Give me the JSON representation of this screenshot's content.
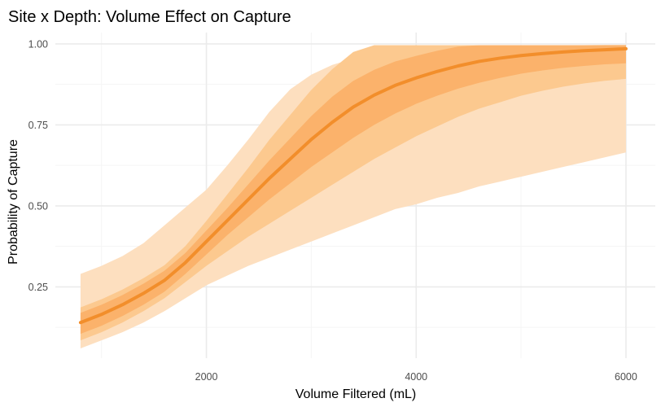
{
  "chart_data": {
    "type": "line",
    "title": "Site x Depth: Volume Effect on Capture",
    "xlabel": "Volume Filtered (mL)",
    "ylabel": "Probability of Capture",
    "xlim": [
      560,
      6280
    ],
    "ylim": [
      0.03,
      1.035
    ],
    "x_ticks": [
      2000,
      4000,
      6000
    ],
    "x_tick_labels": [
      "2000",
      "4000",
      "6000"
    ],
    "x_minor_ticks": [
      1000,
      3000,
      5000
    ],
    "y_ticks": [
      0.25,
      0.5,
      0.75,
      1.0
    ],
    "y_tick_labels": [
      "0.25",
      "0.50",
      "0.75",
      "1.00"
    ],
    "y_minor_ticks": [
      0.125,
      0.375,
      0.625,
      0.875
    ],
    "grid": true,
    "legend": "none",
    "colors": {
      "line": "#f28e2b",
      "ribbon_outer": "#fddfbf",
      "ribbon_middle": "#fcc98f",
      "ribbon_inner": "#fbb26b",
      "grid_major": "#ebebeb",
      "grid_minor": "#f5f5f5"
    },
    "x": [
      800,
      1000,
      1200,
      1400,
      1600,
      1800,
      2000,
      2200,
      2400,
      2600,
      2800,
      3000,
      3200,
      3400,
      3600,
      3800,
      4000,
      4200,
      4400,
      4600,
      4800,
      5000,
      5200,
      5400,
      5600,
      5800,
      6000
    ],
    "series": [
      {
        "values": [
          0.14,
          0.165,
          0.195,
          0.23,
          0.27,
          0.325,
          0.39,
          0.455,
          0.52,
          0.585,
          0.645,
          0.705,
          0.758,
          0.805,
          0.842,
          0.872,
          0.895,
          0.915,
          0.932,
          0.946,
          0.956,
          0.964,
          0.97,
          0.975,
          0.979,
          0.982,
          0.985
        ]
      }
    ],
    "ribbons": [
      {
        "level": "outer",
        "lower": [
          0.06,
          0.085,
          0.11,
          0.14,
          0.175,
          0.215,
          0.255,
          0.285,
          0.315,
          0.34,
          0.365,
          0.39,
          0.415,
          0.44,
          0.465,
          0.49,
          0.505,
          0.525,
          0.54,
          0.56,
          0.575,
          0.59,
          0.605,
          0.62,
          0.635,
          0.65,
          0.665
        ],
        "upper": [
          0.29,
          0.315,
          0.345,
          0.385,
          0.44,
          0.495,
          0.55,
          0.625,
          0.705,
          0.79,
          0.86,
          0.905,
          0.935,
          0.955,
          0.968,
          0.977,
          0.983,
          0.987,
          0.99,
          0.992,
          0.993,
          0.994,
          0.995,
          0.996,
          0.996,
          0.997,
          0.997
        ]
      },
      {
        "level": "middle",
        "lower": [
          0.085,
          0.11,
          0.14,
          0.175,
          0.215,
          0.265,
          0.315,
          0.36,
          0.405,
          0.445,
          0.485,
          0.525,
          0.565,
          0.605,
          0.645,
          0.68,
          0.715,
          0.745,
          0.775,
          0.8,
          0.82,
          0.84,
          0.855,
          0.868,
          0.878,
          0.886,
          0.892
        ]
      },
      {
        "level": "inner",
        "lower": [
          0.105,
          0.13,
          0.16,
          0.195,
          0.235,
          0.29,
          0.35,
          0.41,
          0.465,
          0.52,
          0.57,
          0.62,
          0.665,
          0.71,
          0.75,
          0.785,
          0.815,
          0.84,
          0.862,
          0.88,
          0.895,
          0.908,
          0.918,
          0.926,
          0.932,
          0.937,
          0.94
        ]
      }
    ]
  }
}
